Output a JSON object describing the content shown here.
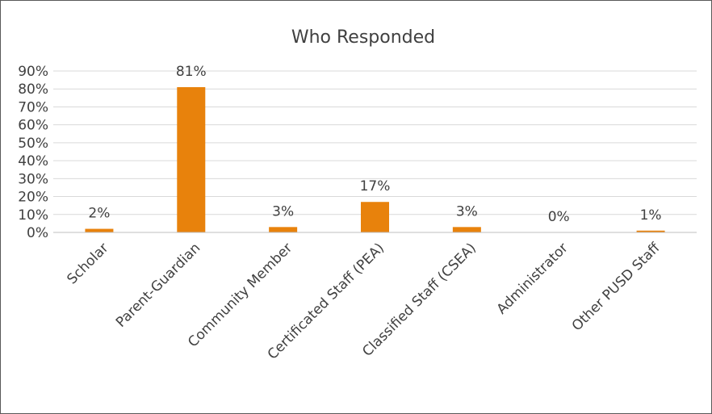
{
  "chart_data": {
    "type": "bar",
    "title": "Who Responded",
    "categories": [
      "Scholar",
      "Parent-Guardian",
      "Community Member",
      "Certificated Staff (PEA)",
      "Classified Staff (CSEA)",
      "Administrator",
      "Other PUSD Staff"
    ],
    "values": [
      2,
      81,
      3,
      17,
      3,
      0,
      1
    ],
    "data_labels": [
      "2%",
      "81%",
      "3%",
      "17%",
      "3%",
      "0%",
      "1%"
    ],
    "ylim": [
      0,
      90
    ],
    "yticks": [
      "0%",
      "10%",
      "20%",
      "30%",
      "40%",
      "50%",
      "60%",
      "70%",
      "80%",
      "90%"
    ],
    "xlabel": "",
    "ylabel": "",
    "grid": true,
    "legend": "none",
    "bar_color": "#E8820C"
  }
}
